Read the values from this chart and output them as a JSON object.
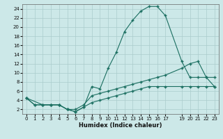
{
  "xlabel": "Humidex (Indice chaleur)",
  "bg_color": "#cce8e8",
  "line_color": "#1a6e60",
  "grid_color": "#aacccc",
  "xlim": [
    -0.5,
    23.5
  ],
  "ylim": [
    1,
    25
  ],
  "xticks": [
    0,
    1,
    2,
    3,
    4,
    5,
    6,
    7,
    8,
    9,
    10,
    11,
    12,
    13,
    14,
    15,
    16,
    17,
    19,
    20,
    21,
    22,
    23
  ],
  "yticks": [
    2,
    4,
    6,
    8,
    10,
    12,
    14,
    16,
    18,
    20,
    22,
    24
  ],
  "series1_x": [
    0,
    1,
    2,
    3,
    4,
    5,
    6,
    7,
    8,
    9,
    10,
    11,
    12,
    13,
    14,
    15,
    16,
    17,
    19,
    20,
    21,
    22,
    23
  ],
  "series1_y": [
    4.5,
    3.0,
    3.0,
    3.0,
    3.0,
    2.0,
    1.5,
    2.5,
    3.5,
    4.0,
    4.5,
    5.0,
    5.5,
    6.0,
    6.5,
    7.0,
    7.0,
    7.0,
    7.0,
    7.0,
    7.0,
    7.0,
    7.0
  ],
  "series2_x": [
    0,
    1,
    2,
    3,
    4,
    5,
    6,
    7,
    8,
    9,
    10,
    11,
    12,
    13,
    14,
    15,
    16,
    17,
    19,
    20,
    21,
    22,
    23
  ],
  "series2_y": [
    4.5,
    3.0,
    3.0,
    3.0,
    3.0,
    2.0,
    2.0,
    3.0,
    5.0,
    5.5,
    6.0,
    6.5,
    7.0,
    7.5,
    8.0,
    8.5,
    9.0,
    9.5,
    11.0,
    12.0,
    12.5,
    9.0,
    9.0
  ],
  "series3_x": [
    0,
    2,
    3,
    4,
    5,
    6,
    7,
    8,
    9,
    10,
    11,
    12,
    13,
    14,
    15,
    16,
    17,
    19,
    20,
    21,
    22,
    23
  ],
  "series3_y": [
    4.5,
    3.0,
    3.0,
    3.0,
    2.0,
    1.5,
    2.5,
    7.0,
    6.5,
    11.0,
    14.5,
    19.0,
    21.5,
    23.5,
    24.5,
    24.5,
    22.5,
    12.5,
    9.0,
    9.0,
    9.0,
    7.0
  ]
}
